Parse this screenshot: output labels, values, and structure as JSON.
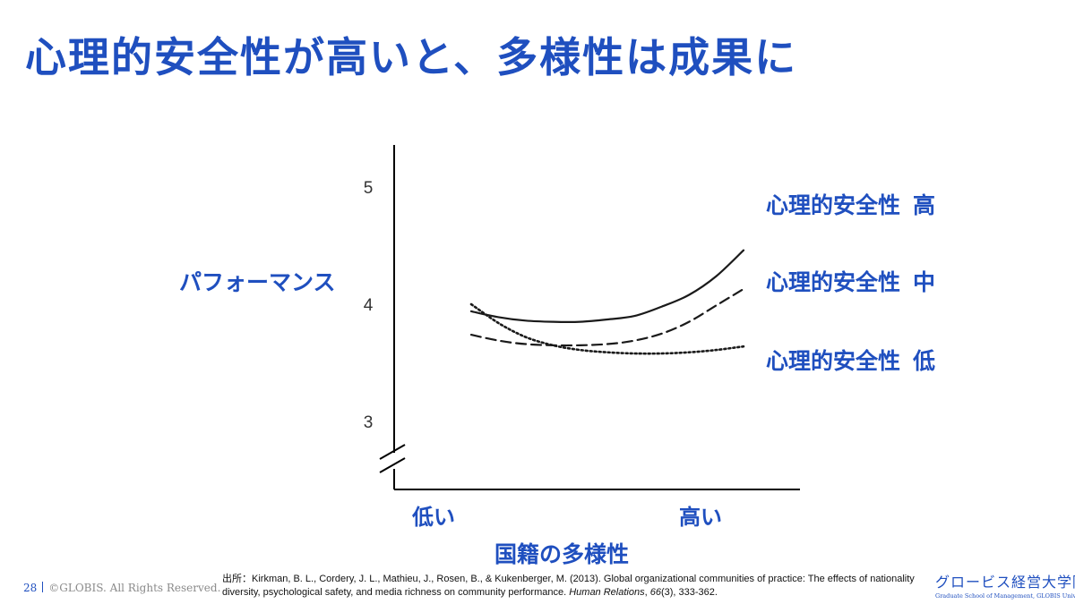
{
  "slide": {
    "title": "心理的安全性が高いと、多様性は成果に",
    "page_number": "28",
    "copyright": "©GLOBIS. All Rights Reserved.",
    "source_prefix": "出所：",
    "source_text": "Kirkman, B. L., Cordery, J. L., Mathieu, J., Rosen, B., & Kukenberger, M. (2013). Global organizational communities of practice: The effects of nationality diversity, psychological safety, and media richness on community performance.",
    "source_journal": "Human Relations",
    "source_volume": "66",
    "source_pages": "(3), 333-362.",
    "logo_main": "グロービス経営大学院",
    "logo_sub": "Graduate School of Management, GLOBIS University",
    "accent_color": "#1f4fbf"
  },
  "chart_data": {
    "type": "line",
    "title": "",
    "xlabel": "国籍の多様性",
    "ylabel": "パフォーマンス",
    "x_ticks": [
      "低い",
      "高い"
    ],
    "y_ticks": [
      3,
      4,
      5
    ],
    "xlim": [
      0,
      1
    ],
    "ylim": [
      2.85,
      5.0
    ],
    "y_axis_break": true,
    "grid": false,
    "legend": "right",
    "x": [
      0,
      0.1,
      0.2,
      0.3,
      0.4,
      0.5,
      0.6,
      0.7,
      0.8,
      0.9,
      1.0
    ],
    "series": [
      {
        "name": "心理的安全性",
        "level": "高",
        "style": "solid",
        "values": [
          3.94,
          3.89,
          3.86,
          3.85,
          3.85,
          3.87,
          3.9,
          3.98,
          4.08,
          4.24,
          4.46
        ]
      },
      {
        "name": "心理的安全性",
        "level": "中",
        "style": "dashed",
        "values": [
          3.74,
          3.69,
          3.66,
          3.65,
          3.65,
          3.66,
          3.69,
          3.75,
          3.85,
          3.99,
          4.13
        ]
      },
      {
        "name": "心理的安全性",
        "level": "低",
        "style": "dotted",
        "values": [
          4.0,
          3.84,
          3.72,
          3.65,
          3.61,
          3.59,
          3.58,
          3.58,
          3.59,
          3.61,
          3.64
        ]
      }
    ]
  }
}
